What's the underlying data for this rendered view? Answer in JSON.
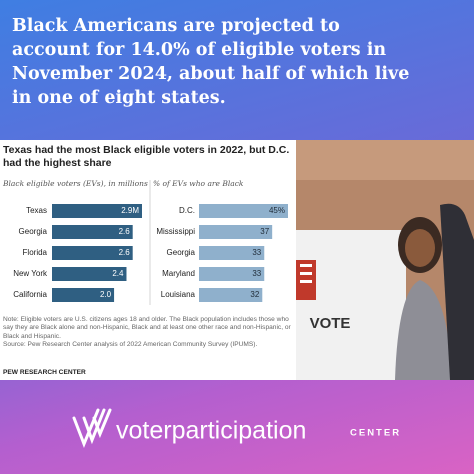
{
  "headline": {
    "lines": [
      "Black Americans are projected to",
      "account for 14.0% of eligible voters in",
      "November 2024, about half of which live",
      "in one of eight states."
    ]
  },
  "figure": {
    "title": "Texas had the most Black eligible voters in 2022, but D.C. had the highest share",
    "note": "Note: Eligible voters are U.S. citizens ages 18 and older. The Black population includes those who say they are Black alone and non-Hispanic, Black and at least one other race and non-Hispanic, or Black and Hispanic.",
    "source": "Source: Pew Research Center analysis of 2022 American Community Survey (IPUMS).",
    "credit": "PEW RESEARCH CENTER"
  },
  "chart_data": [
    {
      "type": "bar",
      "subtitle": "Black eligible voters (EVs), in millions",
      "categories": [
        "Texas",
        "Georgia",
        "Florida",
        "New York",
        "California"
      ],
      "values": [
        2.9,
        2.6,
        2.6,
        2.4,
        2.0
      ],
      "value_labels": [
        "2.9M",
        "2.6",
        "2.6",
        "2.4",
        "2.0"
      ],
      "color": "#2f5f82",
      "label_color": "#ffffff"
    },
    {
      "type": "bar",
      "subtitle": "% of EVs who are Black",
      "categories": [
        "D.C.",
        "Mississippi",
        "Georgia",
        "Maryland",
        "Louisiana"
      ],
      "values": [
        45,
        37,
        33,
        33,
        32
      ],
      "value_labels": [
        "45%",
        "37",
        "33",
        "33",
        "32"
      ],
      "color": "#8fb0cc",
      "label_color": "#1e2a36"
    }
  ],
  "photo": {
    "sign": "VOTE"
  },
  "logo": {
    "name": "voterparticipation",
    "suffix": "CENTER"
  }
}
